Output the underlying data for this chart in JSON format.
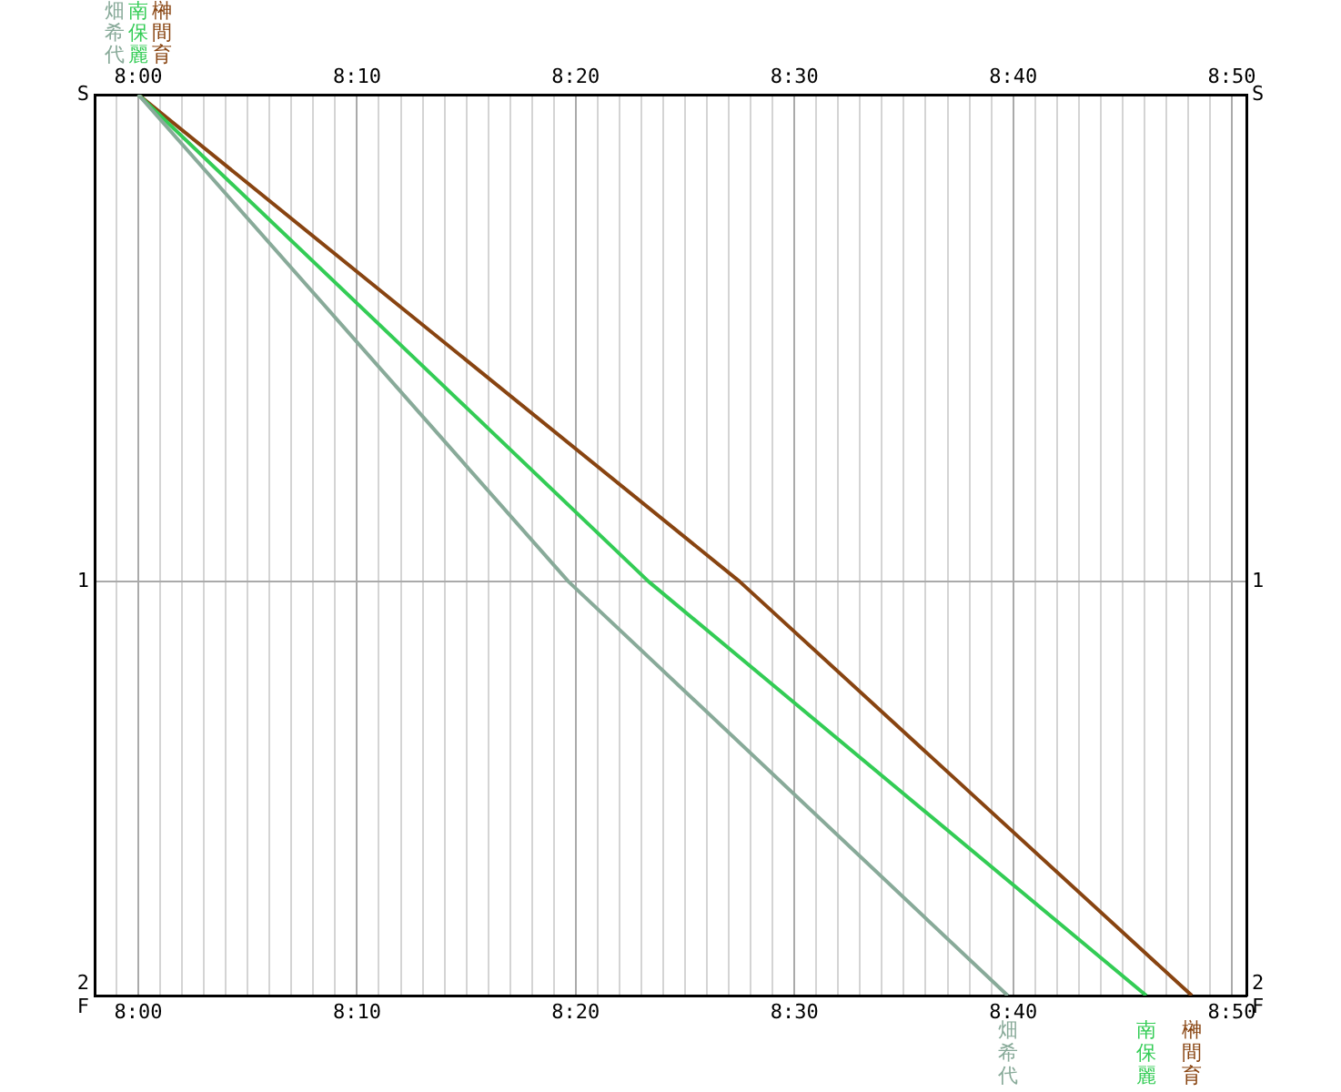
{
  "chart_data": {
    "type": "line",
    "grid": true,
    "legend": false,
    "xlim": [
      7.9667,
      8.8444
    ],
    "xticks": [
      {
        "value": 7.9833,
        "label": null
      },
      {
        "value": 8,
        "label": "8:00"
      },
      {
        "value": 8.0167,
        "label": null
      },
      {
        "value": 8.0333,
        "label": null
      },
      {
        "value": 8.05,
        "label": null
      },
      {
        "value": 8.0667,
        "label": null
      },
      {
        "value": 8.0833,
        "label": null
      },
      {
        "value": 8.1,
        "label": null
      },
      {
        "value": 8.1167,
        "label": null
      },
      {
        "value": 8.1333,
        "label": null
      },
      {
        "value": 8.15,
        "label": null
      },
      {
        "value": 8.1667,
        "label": "8:10"
      },
      {
        "value": 8.1833,
        "label": null
      },
      {
        "value": 8.2,
        "label": null
      },
      {
        "value": 8.2167,
        "label": null
      },
      {
        "value": 8.2333,
        "label": null
      },
      {
        "value": 8.25,
        "label": null
      },
      {
        "value": 8.2667,
        "label": null
      },
      {
        "value": 8.2833,
        "label": null
      },
      {
        "value": 8.3,
        "label": null
      },
      {
        "value": 8.3167,
        "label": null
      },
      {
        "value": 8.3333,
        "label": "8:20"
      },
      {
        "value": 8.35,
        "label": null
      },
      {
        "value": 8.3667,
        "label": null
      },
      {
        "value": 8.3833,
        "label": null
      },
      {
        "value": 8.4,
        "label": null
      },
      {
        "value": 8.4167,
        "label": null
      },
      {
        "value": 8.4333,
        "label": null
      },
      {
        "value": 8.45,
        "label": null
      },
      {
        "value": 8.4667,
        "label": null
      },
      {
        "value": 8.4833,
        "label": null
      },
      {
        "value": 8.5,
        "label": "8:30"
      },
      {
        "value": 8.5167,
        "label": null
      },
      {
        "value": 8.5333,
        "label": null
      },
      {
        "value": 8.55,
        "label": null
      },
      {
        "value": 8.5667,
        "label": null
      },
      {
        "value": 8.5833,
        "label": null
      },
      {
        "value": 8.6,
        "label": null
      },
      {
        "value": 8.6167,
        "label": null
      },
      {
        "value": 8.6333,
        "label": null
      },
      {
        "value": 8.65,
        "label": null
      },
      {
        "value": 8.6667,
        "label": "8:40"
      },
      {
        "value": 8.6833,
        "label": null
      },
      {
        "value": 8.7,
        "label": null
      },
      {
        "value": 8.7167,
        "label": null
      },
      {
        "value": 8.7333,
        "label": null
      },
      {
        "value": 8.75,
        "label": null
      },
      {
        "value": 8.7667,
        "label": null
      },
      {
        "value": 8.7833,
        "label": null
      },
      {
        "value": 8.8,
        "label": null
      },
      {
        "value": 8.8167,
        "label": null
      },
      {
        "value": 8.8333,
        "label": "8:50"
      }
    ],
    "x2lim": [
      7.9667,
      8.8444
    ],
    "x2ticks": [
      {
        "value": 8,
        "label": "8:00"
      },
      {
        "value": 8.1667,
        "label": "8:10"
      },
      {
        "value": 8.3333,
        "label": "8:20"
      },
      {
        "value": 8.5,
        "label": "8:30"
      },
      {
        "value": 8.6667,
        "label": "8:40"
      },
      {
        "value": 8.8333,
        "label": "8:50"
      }
    ],
    "ylim": [
      1.85,
      0
    ],
    "yticks": [
      {
        "value": 0,
        "label": "S"
      },
      {
        "value": 1,
        "label": "1"
      },
      {
        "value": 1.85,
        "label": "2\nF"
      }
    ],
    "y2lim": [
      1.85,
      0
    ],
    "y2ticks": [
      {
        "value": 0,
        "label": "S"
      },
      {
        "value": 1,
        "label": "1"
      },
      {
        "value": 1.85,
        "label": "2\nF"
      }
    ],
    "series": [
      {
        "name": "畑希代",
        "color": "#88aa99",
        "x": [
          8,
          8.3278,
          8.6625
        ],
        "values": [
          0,
          1,
          1.85
        ]
      },
      {
        "name": "南保麗",
        "color": "#33cc55",
        "x": [
          8,
          8.3889,
          8.7681
        ],
        "values": [
          0,
          1,
          1.85
        ]
      },
      {
        "name": "榊間育",
        "color": "#884411",
        "x": [
          8,
          8.4583,
          8.8028
        ],
        "values": [
          0,
          1,
          1.85
        ]
      }
    ]
  }
}
